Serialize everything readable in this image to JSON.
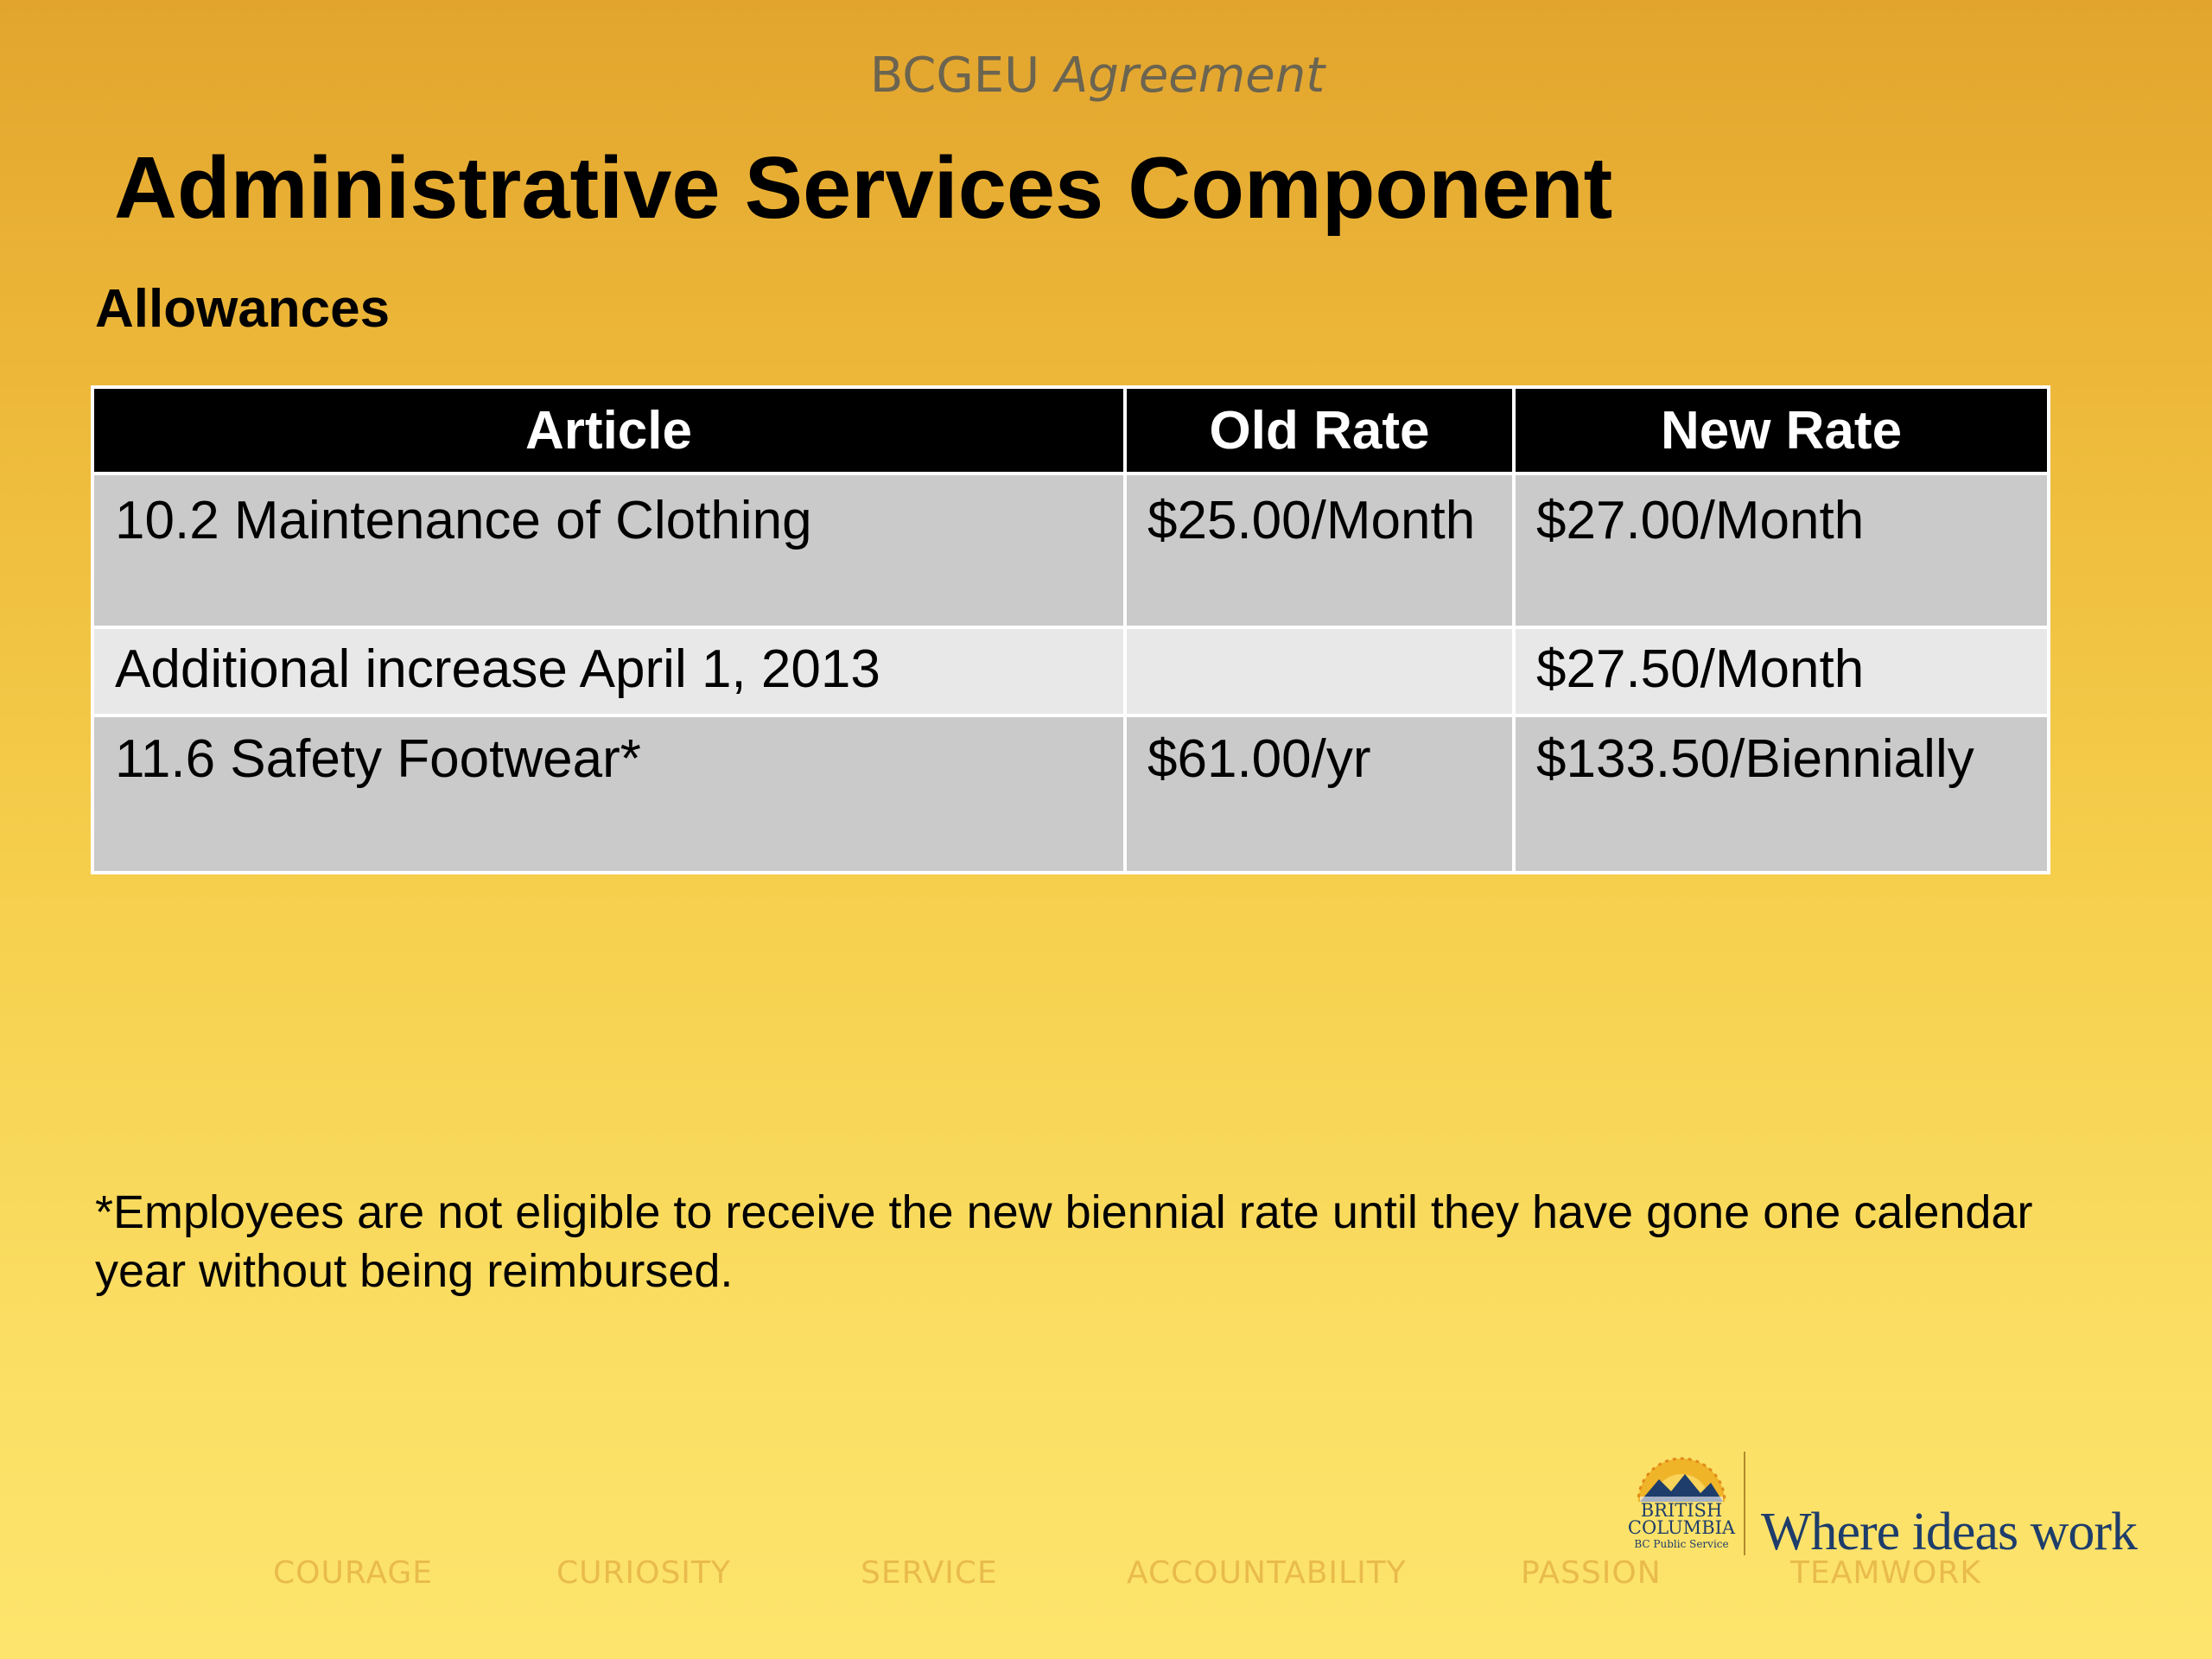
{
  "header": {
    "eyebrow_org": "BCGEU",
    "eyebrow_doc": "Agreement",
    "title": "Administrative Services Component",
    "subtitle": "Allowances"
  },
  "table": {
    "columns": [
      "Article",
      "Old Rate",
      "New Rate"
    ],
    "rows": [
      {
        "article": "10.2 Maintenance of Clothing",
        "old_rate": "$25.00/Month",
        "new_rate": "$27.00/Month"
      },
      {
        "article": "Additional increase April 1, 2013",
        "old_rate": "",
        "new_rate": "$27.50/Month"
      },
      {
        "article": "11.6 Safety Footwear*",
        "old_rate": "$61.00/yr",
        "new_rate": "$133.50/Biennially"
      }
    ]
  },
  "footnote": "*Employees are not eligible to receive the new biennial rate until they have gone one calendar year without being reimbursed.",
  "footer": {
    "values": [
      "COURAGE",
      "CURIOSITY",
      "SERVICE",
      "ACCOUNTABILITY",
      "PASSION",
      "TEAMWORK"
    ],
    "logo": {
      "line1": "BRITISH",
      "line2": "COLUMBIA",
      "line3": "BC Public Service"
    },
    "tagline": "Where ideas work"
  },
  "colors": {
    "background_top": "#e2a42d",
    "background_bottom": "#fde46c",
    "header_row": "#000000",
    "row_dark": "#cacaca",
    "row_light": "#e8e8e8",
    "brand_blue": "#1e3d6b"
  }
}
